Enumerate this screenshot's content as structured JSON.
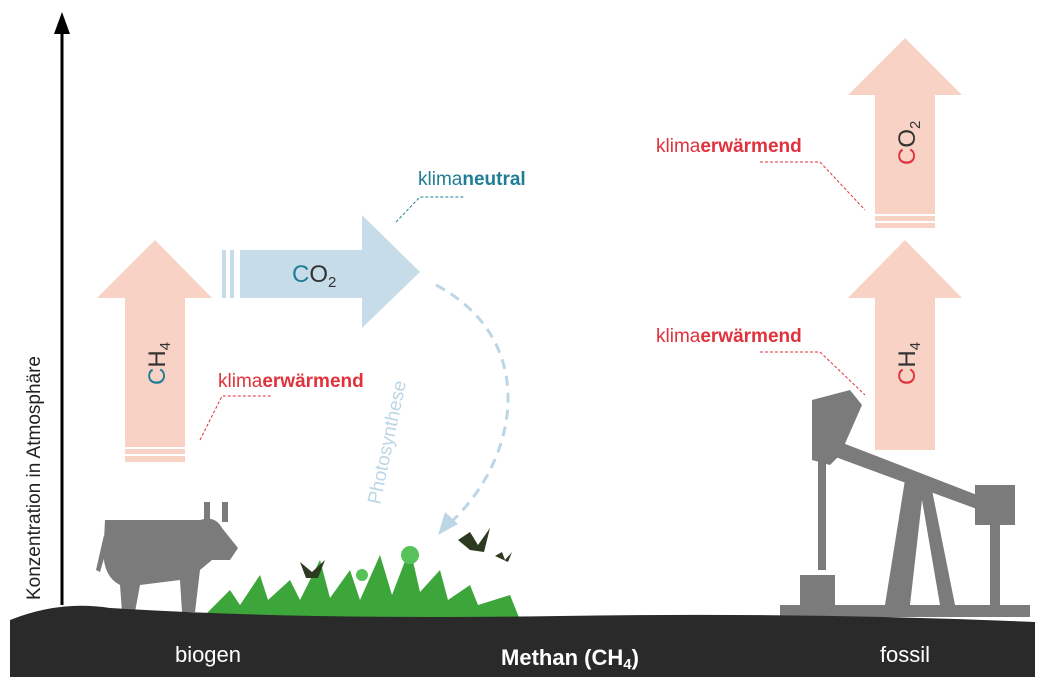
{
  "axis_label": "Konzentration in Atmosphäre",
  "biogen": {
    "ch4_arrow": {
      "element": "C",
      "rest": "H",
      "subscript": "4"
    },
    "co2_arrow": {
      "element": "C",
      "rest": "O",
      "subscript": "2"
    },
    "annotation_warming": {
      "prefix": "klima",
      "emphasis": "erwärmend"
    },
    "annotation_neutral": {
      "prefix": "klima",
      "emphasis": "neutral"
    },
    "process": "Photosynthese"
  },
  "fossil": {
    "co2_arrow": {
      "element": "C",
      "rest": "O",
      "subscript": "2"
    },
    "ch4_arrow": {
      "element": "C",
      "rest": "H",
      "subscript": "4"
    },
    "annotation_co2": {
      "prefix": "klima",
      "emphasis": "erwärmend"
    },
    "annotation_ch4": {
      "prefix": "klima",
      "emphasis": "erwärmend"
    }
  },
  "footer": {
    "left": "biogen",
    "center": {
      "text": "Methan (CH",
      "subscript": "4",
      "suffix": ")"
    },
    "right": "fossil"
  }
}
